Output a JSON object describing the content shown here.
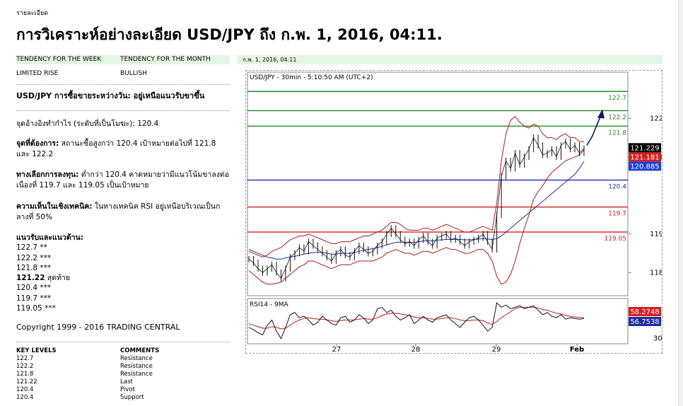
{
  "breadcrumb": "รายละเอียด",
  "page_title": "การวิเคราะห์อย่างละเอียด USD/JPY ถึง ก.พ. 1, 2016, 04:11.",
  "tendency": {
    "week_label": "TENDENCY FOR THE WEEK",
    "month_label": "TENDENCY FOR THE MONTH",
    "week_value": "LIMITED RISE",
    "month_value": "BULLISH",
    "date": "ก.พ. 1, 2016, 04:11"
  },
  "analysis": {
    "headline": "USD/JPY การซื้อขายระหว่างวัน: อยู่เหนือแนวรับขาขึ้น",
    "pivot_text": "จุดอ้างอิงทำกำไร (ระดับที่เป็นโมฆะ): 120.4",
    "our_pref_label": "จุดที่ต้องการ:",
    "our_pref_text": " สถานะซื้อสูงกว่า 120.4 เป้าหมายต่อไปที่ 121.8 และ 122.2",
    "alt_label": "ทางเลือกการลงทุน:",
    "alt_text": " ต่ำกว่า 120.4 คาดหมายว่ามีแนวโน้มขาลงต่อเนื่องที่ 119.7 และ 119.05 เป็นเป้าหมาย",
    "tech_label": "ความเห็นในเชิงเทคนิค:",
    "tech_text": " ในทางเทคนิค RSI อยู่เหนือบริเวณเป็นกลางที่ 50%"
  },
  "sr": {
    "title": "แนวรับและแนวต้าน:",
    "r3": "122.7 **",
    "r2": "122.2 ***",
    "r1": "121.8 ***",
    "last_val": "121.22",
    "last_label": " สุดท้าย",
    "s1": "120.4 ***",
    "s2": "119.7 ***",
    "s3": "119.05 ***"
  },
  "copyright": "Copyright 1999 - 2016 TRADING CENTRAL",
  "key_levels": {
    "col1": "KEY LEVELS",
    "col2": "COMMENTS",
    "rows": [
      {
        "level": "122.7",
        "comment": "Resistance"
      },
      {
        "level": "122.2",
        "comment": "Resistance"
      },
      {
        "level": "121.8",
        "comment": "Resistance"
      },
      {
        "level": "121.22",
        "comment": "Last"
      },
      {
        "level": "120.4",
        "comment": "Pivot"
      },
      {
        "level": "120.4",
        "comment": "Support"
      }
    ]
  },
  "chart_data": {
    "type": "line",
    "title": "USD/JPY - 30min - 5:10:50 AM (UTC+2)",
    "x_tick_labels": [
      "27",
      "28",
      "29",
      "Feb"
    ],
    "y_tick_labels": [
      122,
      121,
      119,
      118
    ],
    "ylim": [
      117.4,
      123.2
    ],
    "levels": [
      {
        "value": 122.7,
        "label": "122.7",
        "color": "#2a8a2a"
      },
      {
        "value": 122.2,
        "label": "122.2",
        "color": "#2a8a2a"
      },
      {
        "value": 121.8,
        "label": "121.8",
        "color": "#2a8a2a"
      },
      {
        "value": 120.4,
        "label": "120.4",
        "color": "#1f2d9e"
      },
      {
        "value": 119.7,
        "label": "119.7",
        "color": "#d42020"
      },
      {
        "value": 119.05,
        "label": "119.05",
        "color": "#d42020"
      }
    ],
    "price_badges": [
      {
        "label": "121.229",
        "value": 121.229,
        "color": "#000000"
      },
      {
        "label": "121.181",
        "value": 121.181,
        "color": "#d42020"
      },
      {
        "label": "120.885",
        "value": 120.885,
        "color": "#1f3fd0"
      }
    ],
    "price": [
      118.35,
      118.25,
      118.1,
      118.0,
      118.1,
      118.2,
      118.0,
      117.85,
      118.1,
      118.4,
      118.5,
      118.65,
      118.55,
      118.8,
      118.7,
      118.6,
      118.5,
      118.4,
      118.3,
      118.5,
      118.6,
      118.45,
      118.4,
      118.55,
      118.7,
      118.6,
      118.5,
      118.55,
      118.7,
      118.8,
      119.0,
      119.15,
      119.0,
      118.85,
      118.75,
      118.8,
      118.7,
      118.85,
      118.95,
      118.8,
      118.7,
      118.9,
      118.95,
      119.0,
      118.85,
      118.9,
      118.8,
      118.7,
      118.8,
      118.85,
      118.9,
      119.0,
      118.8,
      118.6,
      119.5,
      120.5,
      120.9,
      120.7,
      121.1,
      120.8,
      121.0,
      121.2,
      121.5,
      121.3,
      121.05,
      121.1,
      121.2,
      121.0,
      121.3,
      121.4,
      121.2,
      121.3,
      121.1,
      121.22
    ],
    "ma": [
      118.6,
      118.55,
      118.5,
      118.45,
      118.4,
      118.38,
      118.35,
      118.35,
      118.38,
      118.4,
      118.42,
      118.45,
      118.48,
      118.5,
      118.52,
      118.52,
      118.52,
      118.5,
      118.48,
      118.48,
      118.5,
      118.5,
      118.5,
      118.52,
      118.55,
      118.58,
      118.6,
      118.62,
      118.65,
      118.68,
      118.72,
      118.75,
      118.78,
      118.78,
      118.78,
      118.78,
      118.78,
      118.8,
      118.82,
      118.82,
      118.82,
      118.84,
      118.85,
      118.86,
      118.86,
      118.86,
      118.86,
      118.85,
      118.85,
      118.86,
      118.87,
      118.88,
      118.87,
      118.86,
      118.88,
      118.95,
      119.05,
      119.15,
      119.25,
      119.35,
      119.45,
      119.55,
      119.65,
      119.75,
      119.85,
      119.95,
      120.05,
      120.15,
      120.25,
      120.35,
      120.45,
      120.55,
      120.7,
      120.885
    ],
    "bb_upper": [
      118.55,
      118.5,
      118.45,
      118.4,
      118.45,
      118.55,
      118.6,
      118.65,
      118.75,
      118.85,
      118.9,
      118.95,
      118.95,
      119.0,
      118.95,
      118.9,
      118.85,
      118.8,
      118.75,
      118.75,
      118.8,
      118.8,
      118.8,
      118.85,
      118.9,
      118.95,
      118.95,
      119.0,
      119.05,
      119.1,
      119.2,
      119.3,
      119.3,
      119.25,
      119.15,
      119.1,
      119.1,
      119.1,
      119.15,
      119.15,
      119.1,
      119.15,
      119.2,
      119.25,
      119.2,
      119.15,
      119.1,
      119.05,
      119.05,
      119.1,
      119.15,
      119.2,
      119.15,
      119.1,
      119.8,
      120.9,
      121.6,
      121.95,
      122.05,
      121.9,
      121.8,
      121.75,
      121.85,
      121.8,
      121.6,
      121.5,
      121.5,
      121.45,
      121.55,
      121.6,
      121.5,
      121.5,
      121.4,
      121.4
    ],
    "bb_lower": [
      118.05,
      117.95,
      117.85,
      117.75,
      117.7,
      117.7,
      117.72,
      117.75,
      117.85,
      117.95,
      118.05,
      118.15,
      118.2,
      118.3,
      118.3,
      118.25,
      118.2,
      118.15,
      118.1,
      118.15,
      118.2,
      118.2,
      118.2,
      118.25,
      118.3,
      118.3,
      118.3,
      118.3,
      118.35,
      118.4,
      118.5,
      118.55,
      118.6,
      118.55,
      118.5,
      118.5,
      118.45,
      118.5,
      118.55,
      118.55,
      118.5,
      118.55,
      118.6,
      118.65,
      118.6,
      118.6,
      118.55,
      118.5,
      118.5,
      118.55,
      118.6,
      118.6,
      118.5,
      118.3,
      117.9,
      117.7,
      117.75,
      117.95,
      118.3,
      118.75,
      119.15,
      119.5,
      119.9,
      120.1,
      120.25,
      120.45,
      120.6,
      120.7,
      120.8,
      120.9,
      120.95,
      121.0,
      121.05,
      121.181
    ],
    "projection": [
      [
        121.3,
        121.55
      ],
      [
        121.55,
        122.2
      ]
    ],
    "rsi": {
      "label": "RSI14 - 9MA",
      "badges": [
        {
          "label": "58.2748",
          "value": 58.27,
          "color": "#d42020"
        },
        {
          "label": "56.7538",
          "value": 56.75,
          "color": "#1f2d9e"
        }
      ],
      "y_tick_labels": [
        30
      ],
      "ylim": [
        25,
        80
      ],
      "values": [
        45,
        42,
        38,
        35,
        48,
        55,
        40,
        30,
        45,
        62,
        65,
        58,
        60,
        55,
        48,
        52,
        60,
        55,
        50,
        48,
        58,
        60,
        52,
        55,
        62,
        58,
        50,
        55,
        70,
        72,
        65,
        68,
        60,
        55,
        58,
        62,
        50,
        55,
        60,
        55,
        52,
        58,
        60,
        62,
        55,
        50,
        45,
        52,
        58,
        60,
        55,
        48,
        40,
        45,
        78,
        72,
        75,
        70,
        72,
        74,
        70,
        72,
        74,
        68,
        62,
        65,
        60,
        58,
        62,
        56,
        58,
        57,
        56,
        57
      ],
      "ma": [
        50,
        48,
        46,
        44,
        44,
        46,
        45,
        43,
        44,
        48,
        52,
        55,
        57,
        58,
        57,
        56,
        56,
        55,
        54,
        53,
        54,
        55,
        55,
        55,
        56,
        57,
        56,
        56,
        58,
        61,
        63,
        64,
        64,
        63,
        62,
        61,
        59,
        58,
        58,
        57,
        56,
        56,
        57,
        58,
        58,
        57,
        55,
        54,
        54,
        55,
        55,
        54,
        51,
        49,
        53,
        58,
        62,
        66,
        70,
        72,
        72,
        72,
        72,
        71,
        69,
        68,
        66,
        64,
        63,
        61,
        60,
        59,
        58.5,
        58.27
      ]
    }
  }
}
